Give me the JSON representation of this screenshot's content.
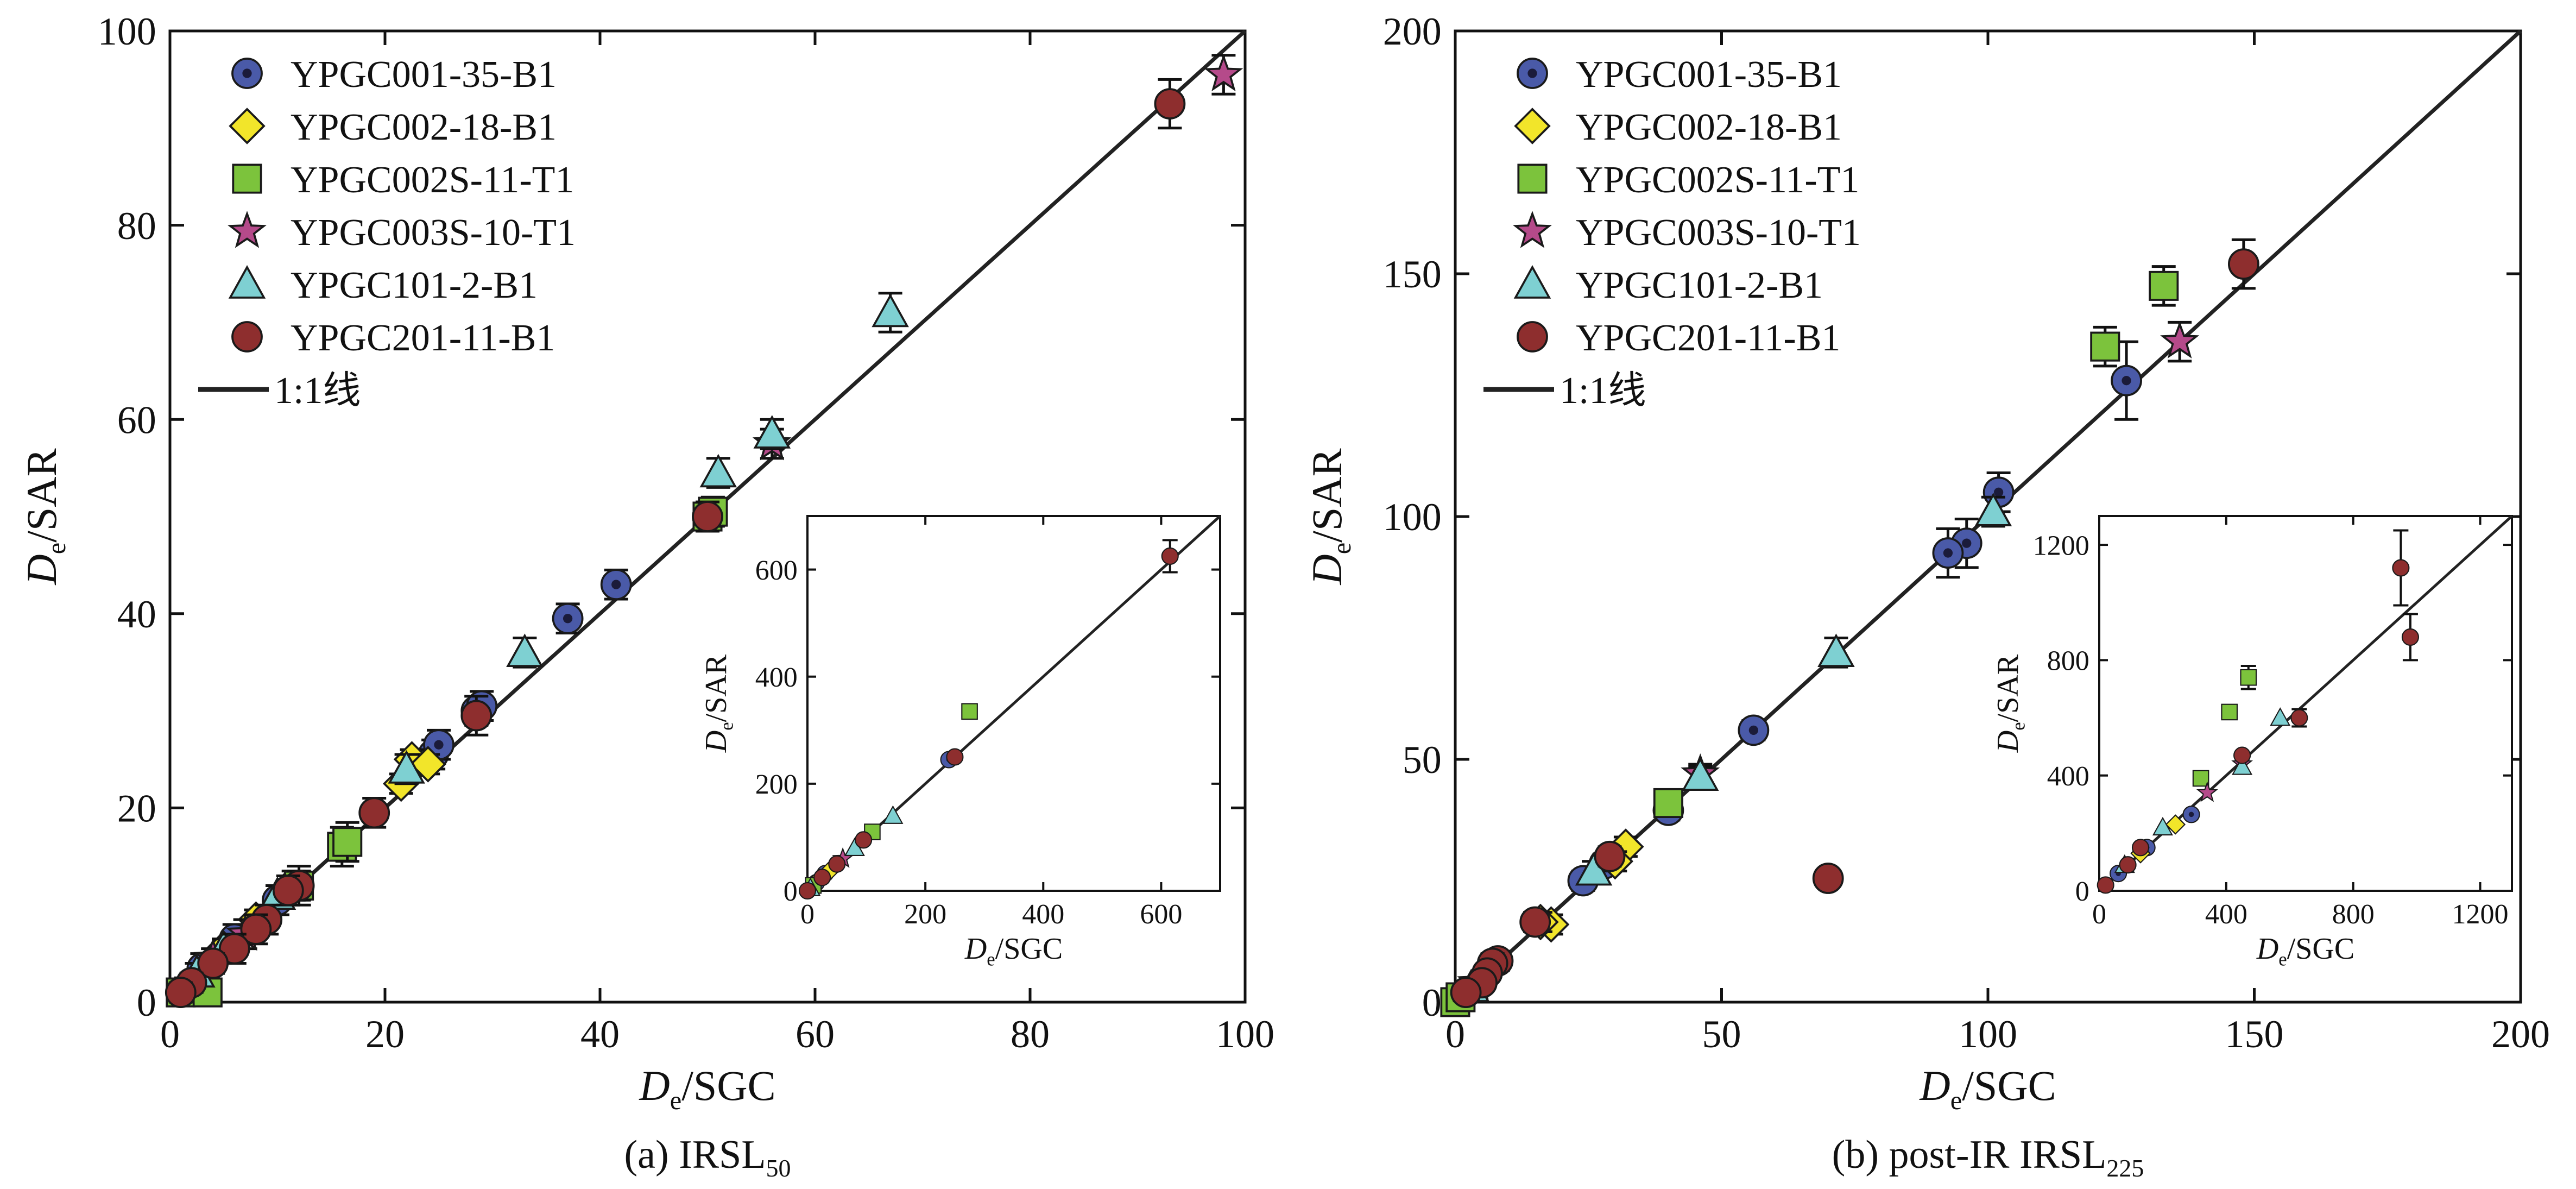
{
  "figure": {
    "colors": {
      "YPGC001-35-B1": "#4a5aa8",
      "YPGC002-18-B1": "#f2e52a",
      "YPGC002S-11-T1": "#7cc33c",
      "YPGC003S-10-T1": "#b54a8a",
      "YPGC101-2-B1": "#7ed0d2",
      "YPGC201-11-B1": "#8e2e2e",
      "line": "#222222"
    },
    "one_to_one_label": "1:1线"
  },
  "chart_data": [
    {
      "id": "a",
      "type": "scatter",
      "caption": "(a) IRSL",
      "caption_sub": "50",
      "xlabel_main": "D",
      "xlabel_sub": "e",
      "xlabel_rest": "/SGC",
      "ylabel_main": "D",
      "ylabel_sub": "e",
      "ylabel_rest": "/SAR",
      "xlim": [
        0,
        100
      ],
      "ylim": [
        0,
        100
      ],
      "xticks": [
        0,
        20,
        40,
        60,
        80,
        100
      ],
      "yticks": [
        0,
        20,
        40,
        60,
        80,
        100
      ],
      "legend": [
        "YPGC001-35-B1",
        "YPGC002-18-B1",
        "YPGC002S-11-T1",
        "YPGC003S-10-T1",
        "YPGC101-2-B1",
        "YPGC201-11-B1"
      ],
      "legend_position": "top-left",
      "series": [
        {
          "name": "YPGC001-35-B1",
          "marker": "circle-dot",
          "points": [
            [
              24.5,
              25.5,
              1.5
            ],
            [
              25,
              26.5,
              1.5
            ],
            [
              28.5,
              30,
              1.5
            ],
            [
              29,
              30.5,
              1.5
            ],
            [
              37,
              39.5,
              1.5
            ],
            [
              41.5,
              43,
              1.5
            ],
            [
              11.5,
              12,
              1.5
            ],
            [
              10,
              10.5,
              1.5
            ],
            [
              6,
              6.5,
              1.5
            ],
            [
              3,
              3.5,
              1.5
            ]
          ]
        },
        {
          "name": "YPGC002-18-B1",
          "marker": "diamond",
          "points": [
            [
              22.5,
              25,
              1
            ],
            [
              24,
              24.5,
              1
            ],
            [
              21.5,
              22.5,
              1
            ],
            [
              8,
              8.5,
              1
            ],
            [
              5,
              5.5,
              1
            ],
            [
              3,
              3,
              1
            ],
            [
              1.5,
              1.5,
              1
            ]
          ]
        },
        {
          "name": "YPGC002S-11-T1",
          "marker": "square",
          "points": [
            [
              16,
              16,
              2
            ],
            [
              16.5,
              16.5,
              2
            ],
            [
              12,
              12,
              2
            ],
            [
              1,
              1,
              1
            ],
            [
              3.5,
              1,
              1
            ],
            [
              50,
              50,
              1.5
            ],
            [
              50.5,
              50.5,
              1.5
            ]
          ]
        },
        {
          "name": "YPGC003S-10-T1",
          "marker": "star",
          "points": [
            [
              98,
              95.5,
              2
            ],
            [
              56,
              57.5,
              1.5
            ],
            [
              4,
              4.5,
              1
            ],
            [
              7,
              7,
              1.5
            ]
          ]
        },
        {
          "name": "YPGC101-2-B1",
          "marker": "triangle",
          "points": [
            [
              67,
              71,
              2
            ],
            [
              56,
              58.5,
              1.5
            ],
            [
              51,
              54.5,
              1.5
            ],
            [
              33,
              36,
              1.5
            ],
            [
              22,
              24,
              1.5
            ],
            [
              10,
              11,
              1
            ],
            [
              2.5,
              3,
              1
            ],
            [
              5,
              5.5,
              1
            ]
          ]
        },
        {
          "name": "YPGC201-11-B1",
          "marker": "circle",
          "points": [
            [
              93,
              92.5,
              2.5
            ],
            [
              28.5,
              29.5,
              2
            ],
            [
              19,
              19.5,
              1.5
            ],
            [
              50,
              50,
              1.5
            ],
            [
              12,
              12,
              1.5
            ],
            [
              11,
              11.5,
              1.5
            ],
            [
              9,
              8.5,
              1.5
            ],
            [
              8,
              7.5,
              1.5
            ],
            [
              6,
              5.5,
              1.5
            ],
            [
              4,
              4,
              1
            ],
            [
              2,
              2,
              1
            ],
            [
              1,
              1,
              1
            ]
          ]
        }
      ],
      "inset": {
        "xlabel_main": "D",
        "xlabel_sub": "e",
        "xlabel_rest": "/SGC",
        "ylabel_main": "D",
        "ylabel_sub": "e",
        "ylabel_rest": "/SAR",
        "xlim": [
          0,
          700
        ],
        "ylim": [
          0,
          700
        ],
        "xticks": [
          0,
          200,
          400,
          600
        ],
        "yticks": [
          0,
          200,
          400,
          600
        ],
        "series": [
          {
            "name": "YPGC001-35-B1",
            "marker": "circle-dot",
            "points": [
              [
                240,
                245,
                0
              ],
              [
                30,
                32,
                0
              ],
              [
                15,
                15,
                0
              ]
            ]
          },
          {
            "name": "YPGC002-18-B1",
            "marker": "diamond",
            "points": [
              [
                20,
                22,
                0
              ],
              [
                40,
                40,
                0
              ]
            ]
          },
          {
            "name": "YPGC002S-11-T1",
            "marker": "square",
            "points": [
              [
                275,
                335,
                0
              ],
              [
                110,
                110,
                0
              ],
              [
                10,
                10,
                0
              ]
            ]
          },
          {
            "name": "YPGC003S-10-T1",
            "marker": "star",
            "points": [
              [
                60,
                60,
                0
              ]
            ]
          },
          {
            "name": "YPGC101-2-B1",
            "marker": "triangle",
            "points": [
              [
                145,
                140,
                0
              ],
              [
                80,
                80,
                0
              ],
              [
                5,
                5,
                0
              ]
            ]
          },
          {
            "name": "YPGC201-11-B1",
            "marker": "circle",
            "points": [
              [
                615,
                625,
                30
              ],
              [
                250,
                250,
                0
              ],
              [
                95,
                95,
                0
              ],
              [
                50,
                50,
                0
              ],
              [
                25,
                25,
                0
              ],
              [
                0,
                0,
                0
              ]
            ]
          }
        ]
      }
    },
    {
      "id": "b",
      "type": "scatter",
      "caption": "(b) post-IR IRSL",
      "caption_sub": "225",
      "xlabel_main": "D",
      "xlabel_sub": "e",
      "xlabel_rest": "/SGC",
      "ylabel_main": "D",
      "ylabel_sub": "e",
      "ylabel_rest": "/SAR",
      "xlim": [
        0,
        200
      ],
      "ylim": [
        0,
        200
      ],
      "xticks": [
        0,
        50,
        100,
        150,
        200
      ],
      "yticks": [
        0,
        50,
        100,
        150,
        200
      ],
      "legend": [
        "YPGC001-35-B1",
        "YPGC002-18-B1",
        "YPGC002S-11-T1",
        "YPGC003S-10-T1",
        "YPGC101-2-B1",
        "YPGC201-11-B1"
      ],
      "legend_position": "top-left",
      "series": [
        {
          "name": "YPGC001-35-B1",
          "marker": "circle-dot",
          "points": [
            [
              102,
              105,
              4
            ],
            [
              96,
              94.5,
              5
            ],
            [
              92.5,
              92.5,
              5
            ],
            [
              126,
              128,
              8
            ],
            [
              56,
              56,
              2
            ],
            [
              40,
              39.5,
              2
            ],
            [
              28,
              28.5,
              2
            ],
            [
              24,
              25,
              2
            ]
          ]
        },
        {
          "name": "YPGC002-18-B1",
          "marker": "diamond",
          "points": [
            [
              32,
              32,
              2
            ],
            [
              30,
              29,
              2
            ],
            [
              18,
              16,
              2
            ],
            [
              16,
              16.5,
              2
            ]
          ]
        },
        {
          "name": "YPGC002S-11-T1",
          "marker": "square",
          "points": [
            [
              122,
              135,
              4
            ],
            [
              133,
              147.5,
              4
            ],
            [
              40,
              41,
              2
            ],
            [
              0,
              0,
              1
            ],
            [
              1,
              1,
              1
            ]
          ]
        },
        {
          "name": "YPGC003S-10-T1",
          "marker": "star",
          "points": [
            [
              136,
              136,
              4
            ],
            [
              46,
              47,
              2
            ],
            [
              4,
              4,
              1
            ]
          ]
        },
        {
          "name": "YPGC101-2-B1",
          "marker": "triangle",
          "points": [
            [
              71.5,
              72,
              3
            ],
            [
              46,
              46.5,
              2
            ],
            [
              26,
              27,
              2
            ],
            [
              3,
              3,
              1
            ],
            [
              101,
              101,
              3
            ]
          ]
        },
        {
          "name": "YPGC201-11-B1",
          "marker": "circle",
          "points": [
            [
              148,
              152,
              5
            ],
            [
              70,
              25.5,
              1.5
            ],
            [
              29,
              30,
              2
            ],
            [
              15,
              16.5,
              2
            ],
            [
              8,
              8.5,
              2
            ],
            [
              7,
              8,
              2
            ],
            [
              6,
              6,
              1.5
            ],
            [
              5,
              4,
              1.5
            ],
            [
              2,
              2,
              1
            ]
          ]
        }
      ],
      "inset": {
        "xlabel_main": "D",
        "xlabel_sub": "e",
        "xlabel_rest": "/SGC",
        "ylabel_main": "D",
        "ylabel_sub": "e",
        "ylabel_rest": "/SAR",
        "xlim": [
          0,
          1300
        ],
        "ylim": [
          0,
          1300
        ],
        "xticks": [
          0,
          400,
          800,
          1200
        ],
        "yticks": [
          0,
          400,
          800,
          1200
        ],
        "series": [
          {
            "name": "YPGC001-35-B1",
            "marker": "circle-dot",
            "points": [
              [
                290,
                265,
                0
              ],
              [
                150,
                150,
                0
              ],
              [
                60,
                60,
                0
              ]
            ]
          },
          {
            "name": "YPGC002-18-B1",
            "marker": "diamond",
            "points": [
              [
                240,
                230,
                0
              ],
              [
                130,
                130,
                0
              ]
            ]
          },
          {
            "name": "YPGC002S-11-T1",
            "marker": "square",
            "points": [
              [
                470,
                740,
                40
              ],
              [
                410,
                620,
                0
              ],
              [
                320,
                390,
                0
              ]
            ]
          },
          {
            "name": "YPGC003S-10-T1",
            "marker": "star",
            "points": [
              [
                450,
                440,
                0
              ],
              [
                340,
                340,
                0
              ]
            ]
          },
          {
            "name": "YPGC101-2-B1",
            "marker": "triangle",
            "points": [
              [
                570,
                600,
                0
              ],
              [
                450,
                430,
                0
              ],
              [
                200,
                220,
                0
              ],
              [
                80,
                90,
                0
              ]
            ]
          },
          {
            "name": "YPGC201-11-B1",
            "marker": "circle",
            "points": [
              [
                950,
                1120,
                130
              ],
              [
                980,
                880,
                80
              ],
              [
                630,
                600,
                30
              ],
              [
                450,
                470,
                0
              ],
              [
                130,
                150,
                0
              ],
              [
                90,
                90,
                0
              ],
              [
                20,
                20,
                0
              ]
            ]
          }
        ]
      }
    }
  ]
}
